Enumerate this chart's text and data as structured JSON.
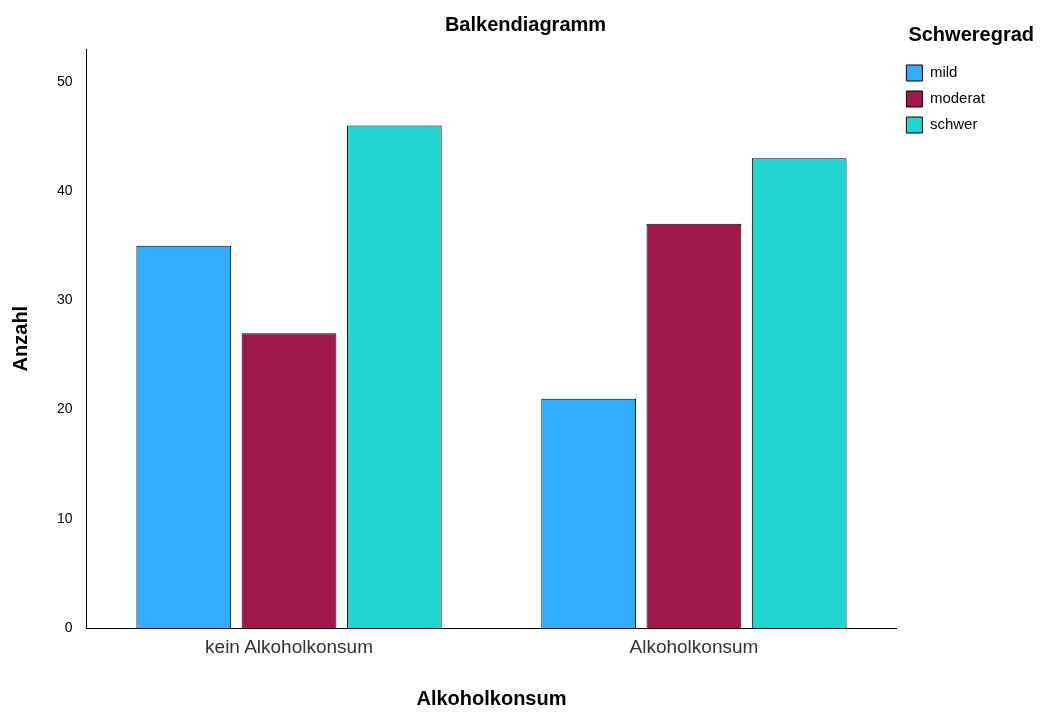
{
  "chart_data": {
    "type": "bar",
    "title": "Balkendiagramm",
    "xlabel": "Alkoholkonsum",
    "ylabel": "Anzahl",
    "legend_title": "Schweregrad",
    "categories": [
      "kein Alkoholkonsum",
      "Alkoholkonsum"
    ],
    "series": [
      {
        "name": "mild",
        "color": "#33adff",
        "values": [
          35,
          21
        ]
      },
      {
        "name": "moderat",
        "color": "#a0184b",
        "values": [
          27,
          37
        ]
      },
      {
        "name": "schwer",
        "color": "#22d5d3",
        "values": [
          46,
          43
        ]
      }
    ],
    "ylim": [
      0,
      53
    ],
    "yticks": [
      0,
      10,
      20,
      30,
      40,
      50
    ],
    "grid": false,
    "legend": "top right"
  }
}
